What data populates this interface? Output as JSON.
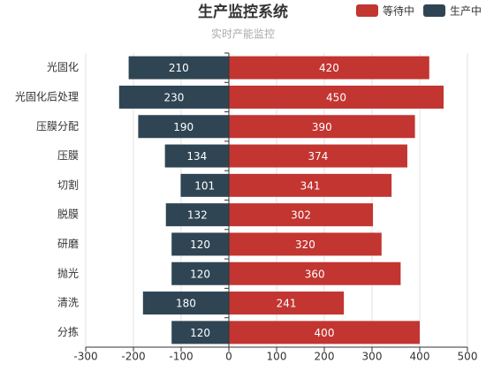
{
  "chart_data": {
    "type": "diverging-bar",
    "title": "生产监控系统",
    "subtitle": "实时产能监控",
    "categories": [
      "光固化",
      "光固化后处理",
      "压膜分配",
      "压膜",
      "切割",
      "脱膜",
      "研磨",
      "抛光",
      "清洗",
      "分拣"
    ],
    "series": [
      {
        "name": "等待中",
        "color": "#c23531",
        "values": [
          420,
          450,
          390,
          374,
          341,
          302,
          320,
          360,
          241,
          400
        ]
      },
      {
        "name": "生产中",
        "color": "#2f4554",
        "values": [
          -210,
          -230,
          -190,
          -134,
          -101,
          -132,
          -120,
          -120,
          -180,
          -120
        ],
        "value_labels": [
          "210",
          "230",
          "190",
          "134",
          "101",
          "132",
          "120",
          "120",
          "180",
          "120"
        ]
      }
    ],
    "xlim": [
      -300,
      500
    ],
    "xticks": [
      -300,
      -200,
      -100,
      0,
      100,
      200,
      300,
      400,
      500
    ],
    "grid": true,
    "legend": "top-right"
  }
}
